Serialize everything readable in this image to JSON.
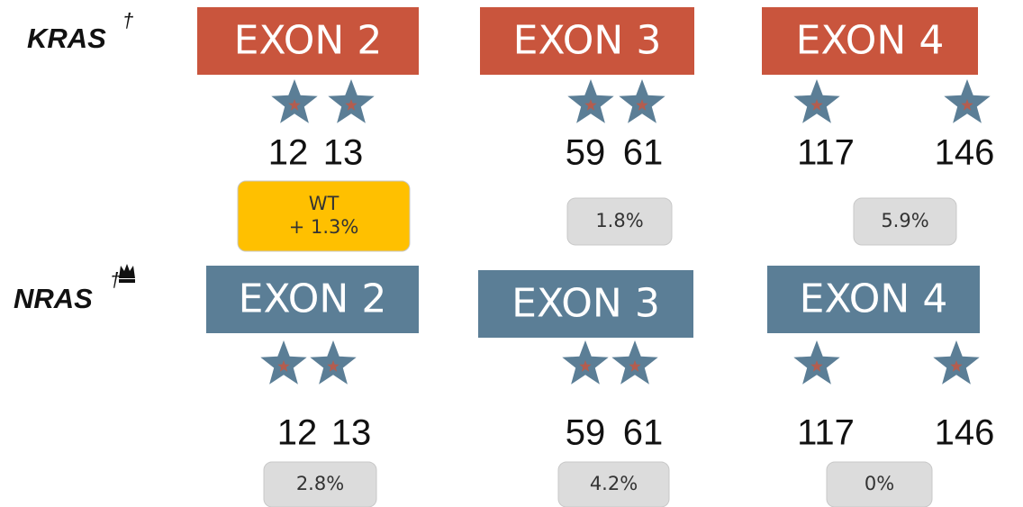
{
  "genes": [
    {
      "name": "KRAS",
      "mark": "†",
      "exons": [
        {
          "label": "EXON 2",
          "codons": [
            "12",
            "13"
          ],
          "frequency": [
            "WT",
            "+ 1.3%"
          ]
        },
        {
          "label": "EXON 3",
          "codons": [
            "59",
            "61"
          ],
          "frequency": [
            "1.8%"
          ]
        },
        {
          "label": "EXON 4",
          "codons": [
            "117",
            "146"
          ],
          "frequency": [
            "5.9%"
          ]
        }
      ]
    },
    {
      "name": "NRAS",
      "mark": "†",
      "exons": [
        {
          "label": "EXON 2",
          "codons": [
            "12",
            "13"
          ],
          "frequency": [
            "2.8%"
          ]
        },
        {
          "label": "EXON 3",
          "codons": [
            "59",
            "61"
          ],
          "frequency": [
            "4.2%"
          ]
        },
        {
          "label": "EXON 4",
          "codons": [
            "117",
            "146"
          ],
          "frequency": [
            "0%"
          ]
        }
      ]
    }
  ]
}
